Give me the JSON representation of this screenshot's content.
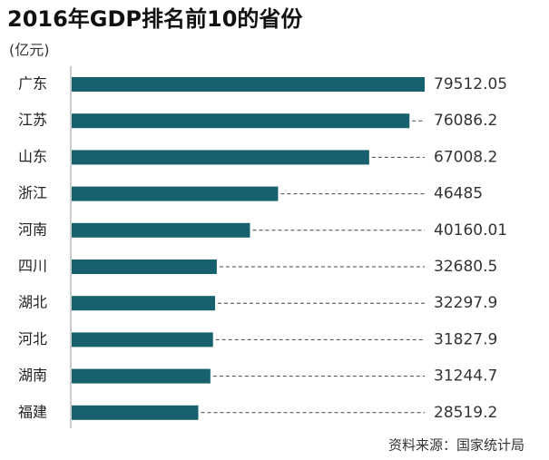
{
  "chart_data": {
    "type": "bar",
    "orientation": "horizontal",
    "title": "2016年GDP排名前10的省份",
    "subtitle": "(亿元)",
    "source": "资料来源：国家统计局",
    "categories": [
      "广东",
      "江苏",
      "山东",
      "浙江",
      "河南",
      "四川",
      "湖北",
      "河北",
      "湖南",
      "福建"
    ],
    "values": [
      79512.05,
      76086.2,
      67008.2,
      46485,
      40160.01,
      32680.5,
      32297.9,
      31827.9,
      31244.7,
      28519.2
    ],
    "color": "#17606e"
  }
}
